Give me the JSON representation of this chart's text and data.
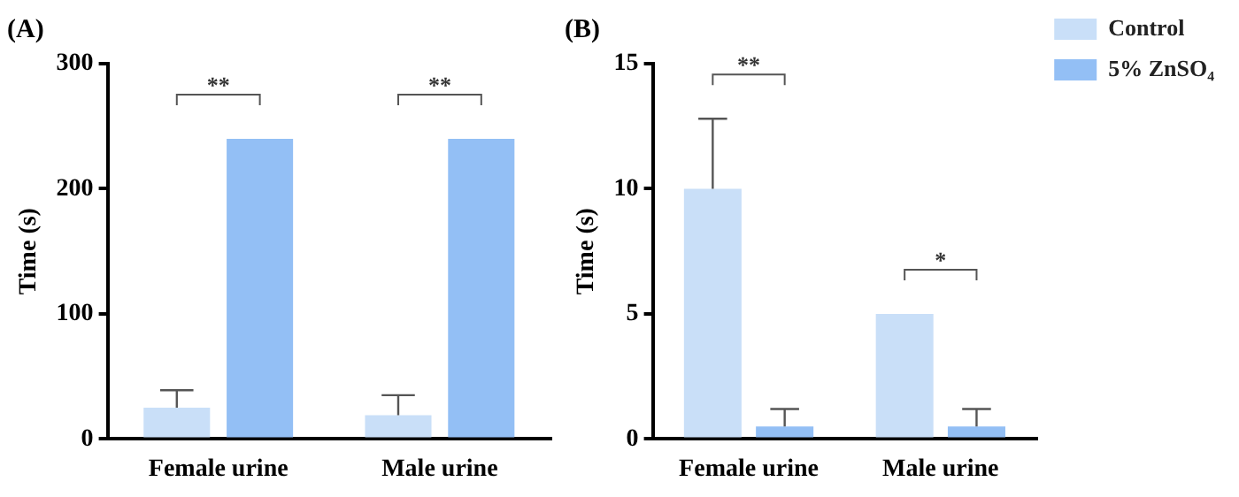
{
  "chart_data": [
    {
      "type": "bar",
      "title": "(A)",
      "ylabel": "Time (s)",
      "categories": [
        "Female urine",
        "Male urine"
      ],
      "ylim": [
        0,
        300
      ],
      "yticks": [
        0,
        100,
        200,
        300
      ],
      "grid": false,
      "legend": false,
      "series": [
        {
          "color": "#c9dff8",
          "values": [
            25,
            19
          ],
          "errors": [
            [
              25,
              39
            ],
            [
              19,
              35
            ]
          ]
        },
        {
          "color": "#93bff5",
          "values": [
            240,
            240
          ],
          "errors": [
            null,
            null
          ]
        }
      ],
      "annotations": [
        "**",
        "**"
      ]
    },
    {
      "type": "bar",
      "title": "(B)",
      "ylabel": "Time (s)",
      "categories": [
        "Female urine",
        "Male urine"
      ],
      "ylim": [
        0,
        15
      ],
      "yticks": [
        0,
        5,
        10,
        15
      ],
      "grid": false,
      "legend": "top right",
      "series": [
        {
          "name": "Control",
          "color": "#c9dff8",
          "values": [
            10,
            5
          ],
          "errors": [
            [
              10,
              12.8
            ],
            null
          ]
        },
        {
          "name": "5% ZnSO₄",
          "color": "#93bff5",
          "values": [
            0.5,
            0.5
          ],
          "errors": [
            [
              0.5,
              1.2
            ],
            [
              0.5,
              1.2
            ]
          ]
        }
      ],
      "annotations": [
        "**",
        "*"
      ]
    }
  ]
}
